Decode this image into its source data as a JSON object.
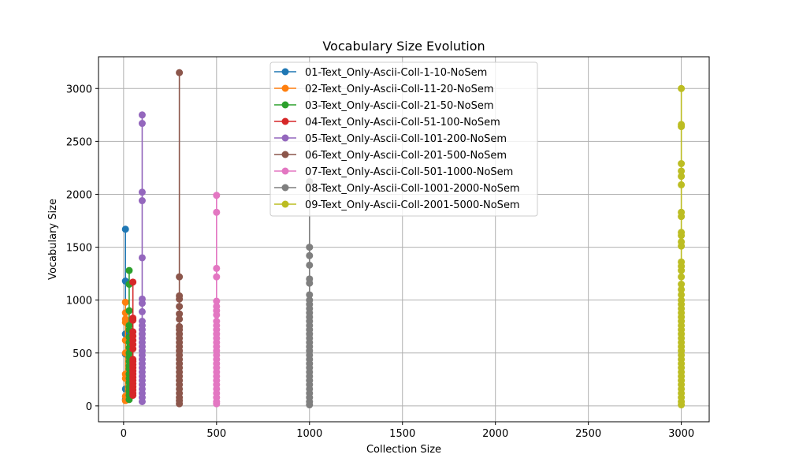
{
  "chart_data": {
    "type": "line",
    "title": "Vocabulary Size Evolution",
    "xlabel": "Collection Size",
    "ylabel": "Vocabulary Size",
    "xlim": [
      -135,
      3150
    ],
    "ylim": [
      -150,
      3300
    ],
    "xticks": [
      0,
      500,
      1000,
      1500,
      2000,
      2500,
      3000
    ],
    "yticks": [
      0,
      500,
      1000,
      1500,
      2000,
      2500,
      3000
    ],
    "grid": true,
    "legend_position": "upper-center",
    "series": [
      {
        "name": "01-Text_Only-Ascii-Coll-1-10-NoSem",
        "color": "#1f77b4",
        "x": 10,
        "values": [
          1670,
          1180,
          680,
          490,
          160,
          60
        ]
      },
      {
        "name": "02-Text_Only-Ascii-Coll-11-20-NoSem",
        "color": "#ff7f0e",
        "x": 10,
        "values": [
          980,
          880,
          820,
          790,
          620,
          500,
          300,
          260,
          90,
          50
        ]
      },
      {
        "name": "03-Text_Only-Ascii-Coll-21-50-NoSem",
        "color": "#2ca02c",
        "x": 30,
        "values": [
          1280,
          1150,
          900,
          760,
          720,
          650,
          600,
          550,
          500,
          460,
          420,
          380,
          350,
          300,
          260,
          220,
          180,
          140,
          100,
          60
        ]
      },
      {
        "name": "04-Text_Only-Ascii-Coll-51-100-NoSem",
        "color": "#d62728",
        "x": 50,
        "values": [
          1170,
          830,
          810,
          700,
          660,
          620,
          580,
          540,
          440,
          420,
          390,
          360,
          330,
          300,
          270,
          240,
          210,
          180,
          150,
          120,
          100
        ]
      },
      {
        "name": "05-Text_Only-Ascii-Coll-101-200-NoSem",
        "color": "#9467bd",
        "x": 100,
        "values": [
          2750,
          2670,
          2020,
          1940,
          1400,
          1010,
          970,
          890,
          800,
          760,
          720,
          680,
          640,
          600,
          560,
          520,
          480,
          440,
          400,
          360,
          320,
          280,
          240,
          200,
          160,
          120,
          80,
          40
        ]
      },
      {
        "name": "06-Text_Only-Ascii-Coll-201-500-NoSem",
        "color": "#8c564b",
        "x": 300,
        "values": [
          3150,
          1220,
          1040,
          1010,
          940,
          870,
          820,
          750,
          720,
          680,
          640,
          600,
          560,
          520,
          480,
          440,
          400,
          360,
          320,
          280,
          240,
          200,
          160,
          120,
          80,
          50,
          20
        ]
      },
      {
        "name": "07-Text_Only-Ascii-Coll-501-1000-NoSem",
        "color": "#e377c2",
        "x": 500,
        "values": [
          1990,
          1830,
          1300,
          1220,
          990,
          940,
          900,
          860,
          800,
          760,
          720,
          680,
          640,
          600,
          560,
          520,
          480,
          440,
          400,
          360,
          320,
          280,
          240,
          200,
          160,
          120,
          80,
          40,
          20
        ]
      },
      {
        "name": "08-Text_Only-Ascii-Coll-1001-2000-NoSem",
        "color": "#7f7f7f",
        "x": 1000,
        "values": [
          2120,
          1500,
          1420,
          1330,
          1200,
          1160,
          1050,
          1000,
          960,
          920,
          880,
          840,
          800,
          760,
          720,
          680,
          640,
          600,
          560,
          520,
          480,
          440,
          400,
          360,
          320,
          280,
          240,
          200,
          160,
          120,
          80,
          40,
          10
        ]
      },
      {
        "name": "09-Text_Only-Ascii-Coll-2001-5000-NoSem",
        "color": "#bcbd22",
        "x": 3000,
        "values": [
          3000,
          2660,
          2640,
          2290,
          2220,
          2170,
          2090,
          1830,
          1790,
          1640,
          1610,
          1550,
          1510,
          1360,
          1320,
          1280,
          1220,
          1150,
          1100,
          1050,
          1000,
          960,
          920,
          880,
          840,
          800,
          760,
          720,
          680,
          640,
          600,
          560,
          520,
          480,
          440,
          400,
          360,
          320,
          280,
          240,
          200,
          160,
          120,
          80,
          40,
          10
        ]
      }
    ]
  }
}
